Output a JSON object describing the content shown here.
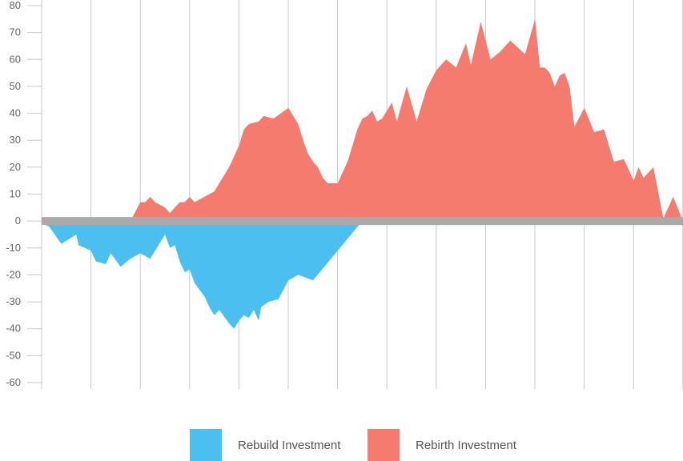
{
  "chart_data": {
    "type": "area",
    "x_range": [
      0,
      130
    ],
    "ylim": [
      -60,
      80
    ],
    "y_ticks": [
      "80",
      "70",
      "60",
      "50",
      "40",
      "30",
      "20",
      "10",
      "0",
      "-10",
      "-20",
      "-30",
      "-40",
      "-50",
      "-60"
    ],
    "y_tick_values": [
      80,
      70,
      60,
      50,
      40,
      30,
      20,
      10,
      0,
      -10,
      -20,
      -30,
      -40,
      -50,
      -60
    ],
    "grid": "vertical",
    "baseline": 0,
    "legend_position": "bottom-center",
    "series": [
      {
        "name": "Rebuild Investment",
        "color": "#4BC0F0",
        "x": [
          0,
          1.5,
          4,
          7,
          7.5,
          10,
          11,
          13,
          14,
          16,
          18,
          20,
          22,
          24,
          25,
          26,
          27,
          28,
          29,
          30,
          31,
          33,
          34,
          35,
          36,
          38,
          39,
          40,
          41,
          42,
          43,
          44,
          44.5,
          46,
          48,
          50,
          52,
          55,
          65
        ],
        "y": [
          -1,
          -2,
          -8.5,
          -5,
          -9,
          -11,
          -15,
          -16,
          -12,
          -17,
          -14,
          -12,
          -14,
          -8,
          -5,
          -10,
          -9,
          -15,
          -19,
          -18,
          -23,
          -28,
          -32,
          -35,
          -33,
          -38,
          -40,
          -37,
          -35,
          -36,
          -33,
          -37,
          -32,
          -30,
          -29,
          -22,
          -20,
          -22,
          0
        ]
      },
      {
        "name": "Rebirth Investment",
        "color": "#F47B6E",
        "x": [
          18,
          20,
          21,
          22,
          23,
          25,
          26,
          28,
          29,
          30,
          31,
          33,
          35,
          36,
          37,
          38,
          39,
          40,
          41,
          42,
          44,
          45,
          47,
          50,
          52,
          53,
          54,
          55,
          56,
          57,
          58,
          60,
          62,
          63,
          64,
          65,
          66,
          67,
          68,
          69,
          70,
          71,
          72,
          74,
          76,
          78,
          80,
          82,
          84,
          86,
          87,
          89,
          91,
          93,
          95,
          98,
          100,
          101,
          102,
          103,
          104,
          105,
          106,
          107,
          108,
          110,
          112,
          114,
          116,
          118,
          120,
          121,
          122,
          124,
          126,
          128,
          130
        ],
        "y": [
          0,
          7,
          7,
          9,
          7,
          5,
          3,
          7,
          7,
          9,
          7,
          9,
          11,
          14,
          17,
          20,
          24,
          28,
          34,
          36,
          37,
          39,
          38,
          42,
          36,
          30,
          25,
          22,
          20,
          16,
          14,
          14,
          22,
          28,
          34,
          38,
          39,
          41,
          37,
          38,
          41,
          44,
          37,
          50,
          37,
          49,
          56,
          60,
          57,
          66,
          58,
          74,
          60,
          63,
          67,
          62,
          75,
          57,
          57,
          55,
          50,
          54,
          55,
          50,
          35,
          42,
          33,
          34,
          22,
          23,
          15,
          20,
          16,
          20,
          1,
          9,
          0
        ]
      }
    ]
  }
}
